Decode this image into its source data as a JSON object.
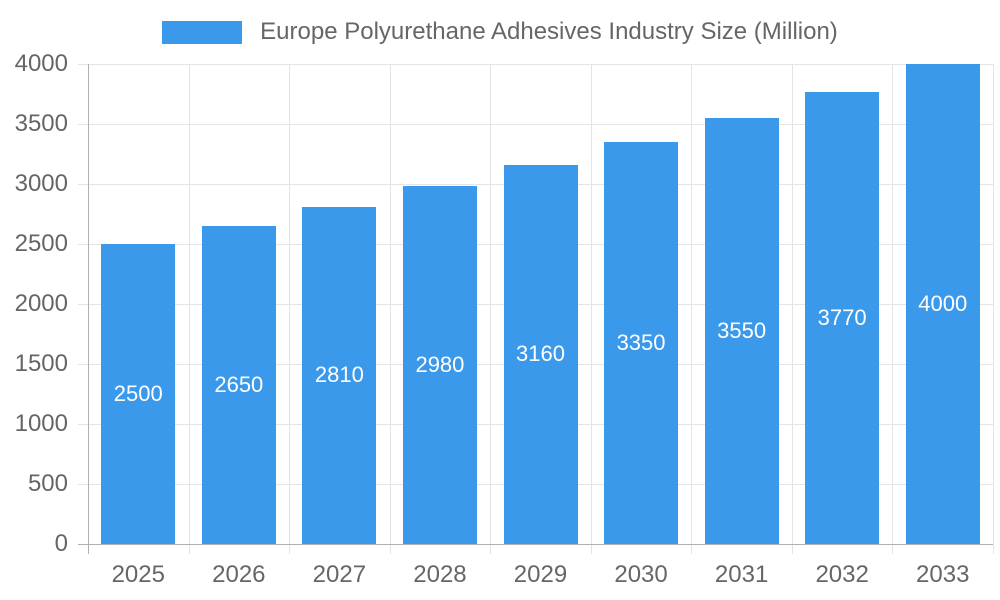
{
  "legend": {
    "series_label": "Europe Polyurethane Adhesives Industry Size (Million)"
  },
  "chart_data": {
    "type": "bar",
    "title": "Europe Polyurethane Adhesives Industry Size (Million)",
    "categories": [
      "2025",
      "2026",
      "2027",
      "2028",
      "2029",
      "2030",
      "2031",
      "2032",
      "2033"
    ],
    "values": [
      2500,
      2650,
      2810,
      2980,
      3160,
      3350,
      3550,
      3770,
      4000
    ],
    "value_labels": [
      "2500",
      "2650",
      "2810",
      "2980",
      "3160",
      "3350",
      "3550",
      "3770",
      "4000"
    ],
    "xlabel": "",
    "ylabel": "",
    "ylim": [
      0,
      4000
    ],
    "yticks": [
      0,
      500,
      1000,
      1500,
      2000,
      2500,
      3000,
      3500,
      4000
    ],
    "ytick_labels": [
      "0",
      "500",
      "1000",
      "1500",
      "2000",
      "2500",
      "3000",
      "3500",
      "4000"
    ],
    "grid": true,
    "legend_position": "top-center",
    "colors": {
      "bar": "#3B99EC",
      "grid_line": "#E4E4E4",
      "axis_line": "#B0B0B0",
      "axis_text": "#666666",
      "bar_label_text": "#FFFFFF",
      "background": "#FFFFFF"
    }
  }
}
